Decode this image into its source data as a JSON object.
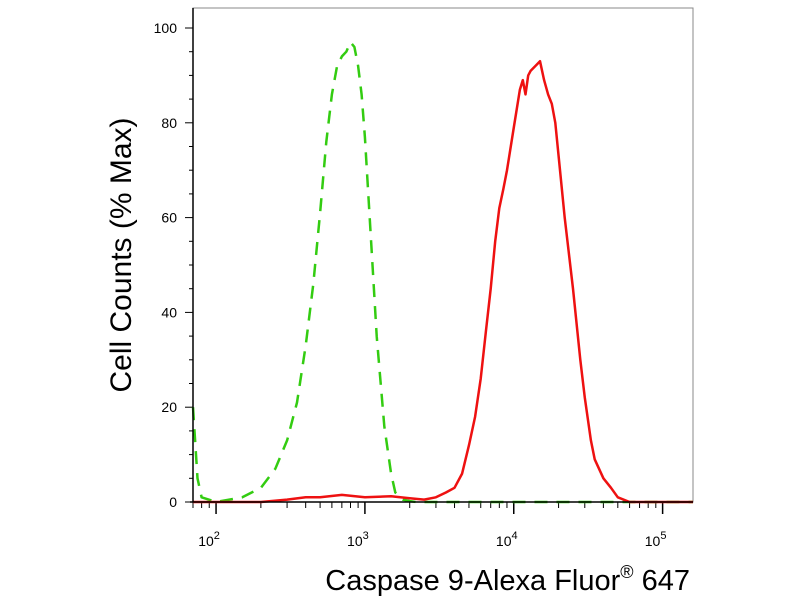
{
  "chart_data": {
    "type": "line",
    "xlabel": "Caspase 9-Alexa Fluor",
    "xlabel_superscript": "®",
    "xlabel_suffix": " 647",
    "ylabel": "Cell Counts (% Max)",
    "x_scale": "log",
    "xlim": [
      70,
      160000
    ],
    "ylim": [
      0,
      103
    ],
    "y_ticks": [
      0,
      20,
      40,
      60,
      80,
      100
    ],
    "x_major_ticks": [
      100,
      1000,
      10000,
      100000
    ],
    "x_tick_labels": [
      {
        "base": "10",
        "exp": "2"
      },
      {
        "base": "10",
        "exp": "3"
      },
      {
        "base": "10",
        "exp": "4"
      },
      {
        "base": "10",
        "exp": "5"
      }
    ],
    "grid": false,
    "series": [
      {
        "style": "dashed",
        "color": "#33cc11",
        "x": [
          70,
          72,
          75,
          80,
          100,
          150,
          200,
          250,
          300,
          350,
          400,
          450,
          500,
          550,
          600,
          650,
          700,
          750,
          800,
          850,
          900,
          950,
          1000,
          1100,
          1200,
          1350,
          1500,
          1600,
          1800,
          2000,
          2200,
          2500,
          3000,
          5000,
          10000,
          30000,
          100000,
          160000
        ],
        "y": [
          20,
          14,
          5,
          1,
          0,
          1,
          3,
          7,
          13,
          21,
          33,
          46,
          61,
          76,
          86,
          92,
          94,
          95,
          97,
          96,
          92,
          86,
          77,
          55,
          35,
          16,
          6,
          2,
          0.5,
          0.2,
          0,
          0,
          0,
          0,
          0,
          0,
          0,
          0
        ]
      },
      {
        "style": "solid",
        "color": "#ee1111",
        "x": [
          70,
          100,
          200,
          300,
          400,
          500,
          700,
          1000,
          1500,
          2000,
          2500,
          3000,
          3500,
          4000,
          4500,
          5000,
          5500,
          6000,
          6500,
          7000,
          7500,
          8000,
          8500,
          9000,
          10000,
          11000,
          11500,
          12000,
          12500,
          13000,
          14000,
          15000,
          16000,
          17000,
          18000,
          19000,
          20000,
          22000,
          25000,
          28000,
          30000,
          33000,
          35000,
          40000,
          45000,
          50000,
          60000,
          80000,
          160000
        ],
        "y": [
          0,
          0,
          0,
          0.5,
          1,
          1,
          1.5,
          1,
          1.2,
          0.8,
          0.5,
          1,
          2,
          3,
          6,
          12,
          18,
          26,
          36,
          45,
          55,
          62,
          66,
          70,
          79,
          87,
          89,
          86,
          90,
          91,
          92,
          93,
          89,
          86,
          84,
          80,
          73,
          60,
          45,
          30,
          22,
          13,
          9,
          5,
          3,
          1,
          0,
          0,
          0
        ]
      }
    ]
  }
}
